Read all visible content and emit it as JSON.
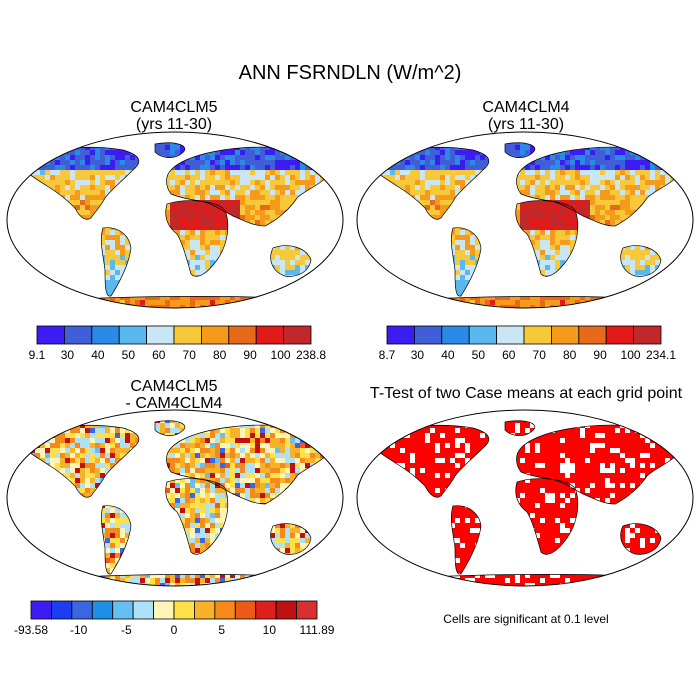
{
  "page": {
    "title": "ANN FSRNDLN (W/m^2)"
  },
  "panels": [
    {
      "title_line1": "CAM4CLM5",
      "title_line2": "(yrs 11-30)",
      "colorbar": {
        "labels": [
          "9.1",
          "30",
          "40",
          "50",
          "60",
          "70",
          "80",
          "90",
          "100",
          "238.8"
        ],
        "colors": [
          "#3b1cf2",
          "#3f5ed8",
          "#2a8ae6",
          "#5bb8ee",
          "#c8e6f4",
          "#f6c83a",
          "#f59a1a",
          "#e7691a",
          "#e21a1a",
          "#c0282a"
        ]
      }
    },
    {
      "title_line1": "CAM4CLM4",
      "title_line2": "(yrs 11-30)",
      "colorbar": {
        "labels": [
          "8.7",
          "30",
          "40",
          "50",
          "60",
          "70",
          "80",
          "90",
          "100",
          "234.1"
        ],
        "colors": [
          "#3b1cf2",
          "#3f5ed8",
          "#2a8ae6",
          "#5bb8ee",
          "#c8e6f4",
          "#f6c83a",
          "#f59a1a",
          "#e7691a",
          "#e21a1a",
          "#c0282a"
        ]
      }
    },
    {
      "title_line1": "CAM4CLM5",
      "title_line2": "- CAM4CLM4",
      "colorbar": {
        "labels": [
          "-93.58",
          "-10",
          "-5",
          "0",
          "5",
          "10",
          "111.89"
        ],
        "colors": [
          "#3b1cf2",
          "#1d3ef0",
          "#3a66e4",
          "#1e90e6",
          "#66bff0",
          "#aee0f6",
          "#fff5b8",
          "#fde04a",
          "#f8b22a",
          "#f58a1a",
          "#ee5a18",
          "#e01e1e",
          "#c01010",
          "#d83030"
        ]
      }
    },
    {
      "title_line1": "T-Test of two Case means at each grid point",
      "note": "Cells are significant at 0.1 level",
      "color": "#ff0000"
    }
  ]
}
